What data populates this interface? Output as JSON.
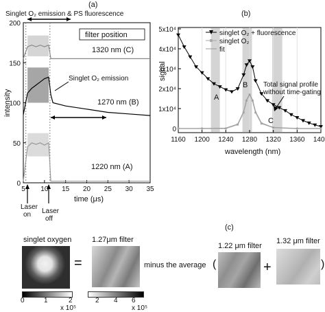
{
  "panel_a": {
    "label": "(a)",
    "top_annotation": "Singlet O₂ emission & PS fluorescence",
    "filter_box": "filter position",
    "ylabel": "intensity",
    "xlabel": "time (μs)",
    "y_ticks": [
      "0",
      "50",
      "100",
      "150",
      "200"
    ],
    "x_ticks": [
      "5",
      "10",
      "15",
      "20",
      "25",
      "30",
      "35"
    ],
    "traces": [
      {
        "name": "1320 nm (C)",
        "label": "1320 nm (C)"
      },
      {
        "name": "1270 nm (B)",
        "label": "1270 nm (B)"
      },
      {
        "name": "1220 nm (A)",
        "label": "1220 nm (A)"
      }
    ],
    "emission_annotation": "Singlet O₂ emission",
    "laser_on": "Laser\non",
    "laser_off": "Laser\noff"
  },
  "panel_b": {
    "label": "(b)",
    "ylabel": "signal",
    "xlabel": "wavelength (nm)",
    "y_ticks": [
      "0",
      "1x10⁴",
      "2x10⁴",
      "3x10⁴",
      "4x10⁴",
      "5x10⁴"
    ],
    "x_ticks": [
      "1160",
      "1200",
      "1240",
      "1280",
      "1320",
      "1360",
      "1400"
    ],
    "legend": [
      "singlet O₂ + fluorescence",
      "singlet O₂",
      "fit"
    ],
    "band_labels": [
      "A",
      "B",
      "C"
    ],
    "annotation": "Total signal profile\nwithout time-gating"
  },
  "panel_c": {
    "label": "(c)",
    "titles": [
      "singlet oxygen",
      "1.27μm filter",
      "1.22 μm filter",
      "1.32 μm filter"
    ],
    "operators": [
      "=",
      "minus the average",
      "(",
      "+",
      ")"
    ],
    "colorbar1": {
      "ticks": [
        "0",
        "1",
        "2"
      ],
      "unit": "x 10⁵"
    },
    "colorbar2": {
      "ticks": [
        "2",
        "4",
        "6"
      ],
      "unit": "x 10⁵"
    }
  },
  "chart_data": [
    {
      "type": "line",
      "xlabel": "time (μs)",
      "ylabel": "intensity",
      "xlim": [
        5,
        35
      ],
      "ylim": [
        0,
        200
      ],
      "series": [
        {
          "name": "1320 nm (C)",
          "x": [
            5,
            6,
            7,
            8,
            9,
            10,
            11,
            11.5,
            12,
            15,
            20,
            25,
            30,
            35
          ],
          "values": [
            155,
            170,
            172,
            170,
            172,
            170,
            172,
            155,
            155,
            155,
            155,
            155,
            155,
            155
          ]
        },
        {
          "name": "1270 nm (B)",
          "x": [
            5,
            6,
            7,
            8,
            9,
            10,
            11,
            11.5,
            12,
            15,
            20,
            25,
            30,
            35
          ],
          "values": [
            85,
            112,
            118,
            122,
            126,
            130,
            132,
            110,
            100,
            96,
            92,
            88,
            86,
            84
          ]
        },
        {
          "name": "1220 nm (A)",
          "x": [
            5,
            6,
            7,
            8,
            9,
            10,
            11,
            11.5,
            12,
            15,
            20,
            25,
            30,
            35
          ],
          "values": [
            2,
            45,
            50,
            48,
            50,
            47,
            50,
            2,
            2,
            2,
            2,
            2,
            2,
            2
          ]
        }
      ]
    },
    {
      "type": "line",
      "xlabel": "wavelength (nm)",
      "ylabel": "signal",
      "xlim": [
        1160,
        1400
      ],
      "ylim": [
        0,
        50000
      ],
      "series": [
        {
          "name": "singlet O₂ + fluorescence",
          "x": [
            1160,
            1170,
            1180,
            1190,
            1200,
            1210,
            1220,
            1230,
            1240,
            1250,
            1260,
            1270,
            1275,
            1280,
            1285,
            1290,
            1300,
            1310,
            1320,
            1330,
            1340,
            1350,
            1360,
            1370,
            1380,
            1390,
            1400
          ],
          "values": [
            47000,
            41000,
            36000,
            31000,
            28000,
            25000,
            22500,
            21000,
            19500,
            18500,
            20000,
            27000,
            32000,
            34000,
            31000,
            24000,
            17500,
            14000,
            12000,
            10500,
            9000,
            7000,
            5500,
            4000,
            2800,
            1800,
            1000
          ]
        },
        {
          "name": "singlet O₂",
          "x": [
            1160,
            1200,
            1240,
            1260,
            1270,
            1275,
            1280,
            1285,
            1290,
            1300,
            1320,
            1360,
            1400
          ],
          "values": [
            0,
            0,
            0,
            2000,
            8000,
            14000,
            17000,
            14000,
            8000,
            2500,
            500,
            0,
            0
          ]
        },
        {
          "name": "fit",
          "x": [
            1160,
            1200,
            1240,
            1260,
            1270,
            1275,
            1280,
            1285,
            1290,
            1300,
            1320,
            1360,
            1400
          ],
          "values": [
            0,
            0,
            200,
            2200,
            8500,
            14500,
            17200,
            14500,
            8500,
            2800,
            500,
            0,
            0
          ]
        }
      ]
    }
  ]
}
